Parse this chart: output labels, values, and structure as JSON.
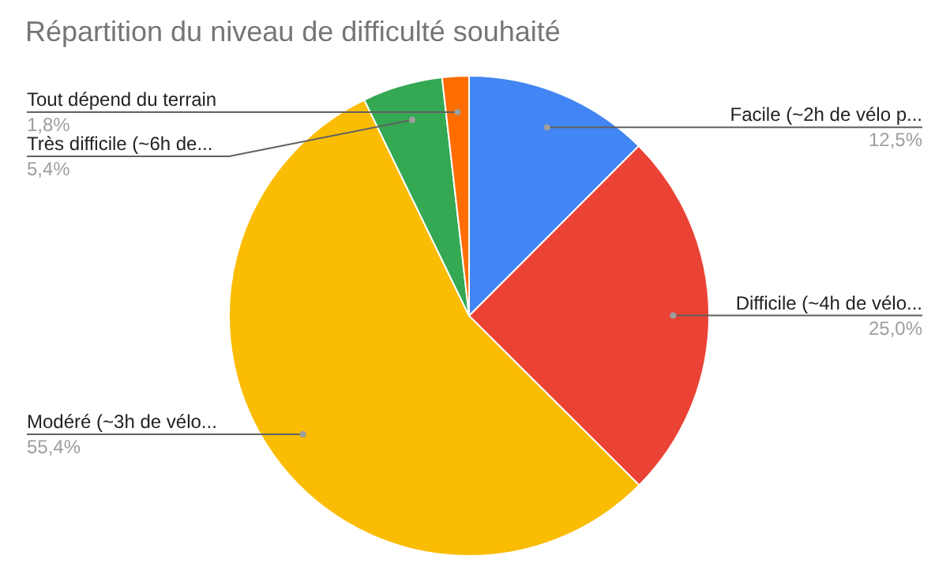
{
  "chart_data": {
    "type": "pie",
    "title": "Répartition du niveau de difficulté souhaité",
    "categories": [
      "Facile (~2h de vélo p...",
      "Difficile (~4h de vélo...",
      "Modéré (~3h de vélo...",
      "Très difficile (~6h de...",
      "Tout dépend du terrain"
    ],
    "values": [
      12.5,
      25.0,
      55.4,
      5.4,
      1.8
    ],
    "value_labels": [
      "12,5%",
      "25,0%",
      "55,4%",
      "5,4%",
      "1,8%"
    ],
    "colors": [
      "#4285f4",
      "#ea4335",
      "#fbbc04",
      "#34a853",
      "#ff6d01"
    ]
  }
}
